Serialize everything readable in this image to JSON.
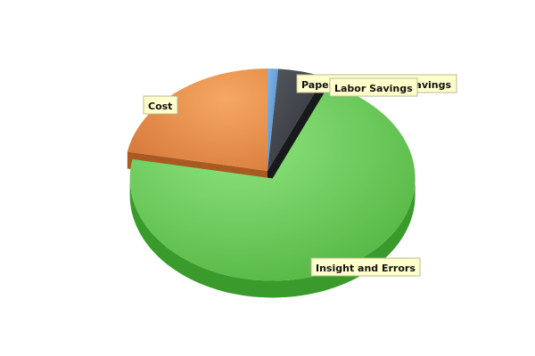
{
  "chart_data": {
    "type": "pie",
    "style": "3d-exploded",
    "title": "",
    "legend": "none",
    "slices": [
      {
        "label": "Paper and Storage Savings",
        "value": 1.2,
        "color": "#5b9bd5"
      },
      {
        "label": "Labor Savings",
        "value": 5.3,
        "color": "#3c3f46"
      },
      {
        "label": "Insight and Errors",
        "value": 71.5,
        "color": "#6fd060",
        "exploded": true
      },
      {
        "label": "Cost",
        "value": 22.0,
        "color": "#e8904c"
      }
    ]
  }
}
